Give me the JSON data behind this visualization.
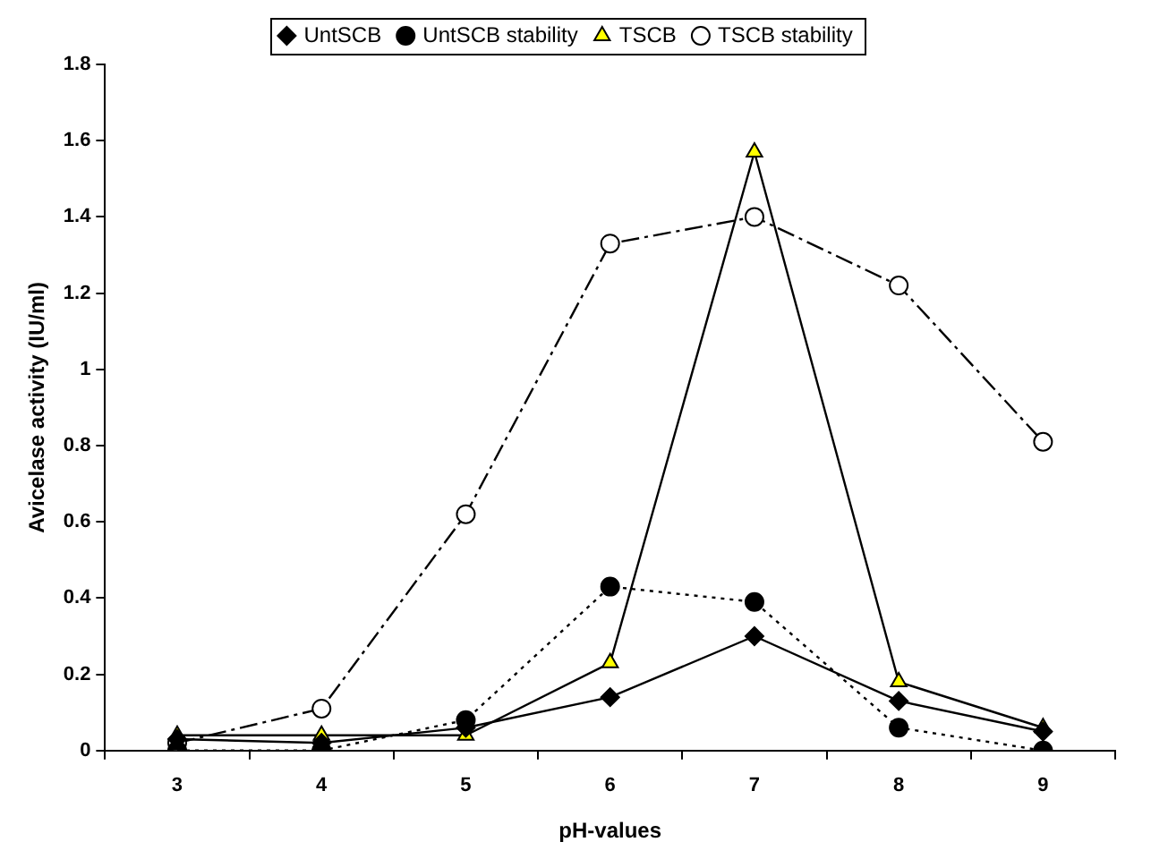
{
  "chart_data": {
    "type": "line",
    "xlabel": "pH-values",
    "ylabel": "Avicelase activity (IU/ml)",
    "categories": [
      "3",
      "4",
      "5",
      "6",
      "7",
      "8",
      "9"
    ],
    "series": [
      {
        "name": "UntSCB",
        "color": "#000000",
        "marker": "diamond",
        "line_style": "solid",
        "values": [
          0.03,
          0.02,
          0.06,
          0.14,
          0.3,
          0.13,
          0.05
        ]
      },
      {
        "name": "UntSCB stability",
        "color": "#000000",
        "marker": "circle",
        "line_style": "dotted",
        "values": [
          0,
          0,
          0.08,
          0.43,
          0.39,
          0.06,
          0
        ]
      },
      {
        "name": "TSCB",
        "color": "#000000",
        "colors": [
          "#ffff00",
          "#ffff00",
          "#ffff00",
          "#ffff00",
          "#ffff00",
          "#ffff00",
          "#ffff00"
        ],
        "marker": "triangle",
        "line_style": "solid",
        "values": [
          0.04,
          0.04,
          0.04,
          0.23,
          1.57,
          0.18,
          0.06
        ]
      },
      {
        "name": "TSCB stability",
        "color": "#000000",
        "colors": [
          "#ffffff",
          "#ffffff",
          "#ffffff",
          "#ffffff",
          "#ffffff",
          "#ffffff",
          "#ffffff"
        ],
        "marker": "circle",
        "line_style": "dashed",
        "values": [
          0.02,
          0.11,
          0.62,
          1.33,
          1.4,
          1.22,
          0.81
        ]
      }
    ],
    "ylim": [
      0,
      1.8
    ],
    "yticks": [
      {
        "value": 0,
        "label": "0"
      },
      0.2,
      0.4,
      0.6,
      0.8,
      {
        "value": 1,
        "label": "1"
      },
      1.2,
      1.4,
      1.6,
      1.8
    ],
    "grid": false,
    "legend": "top"
  }
}
